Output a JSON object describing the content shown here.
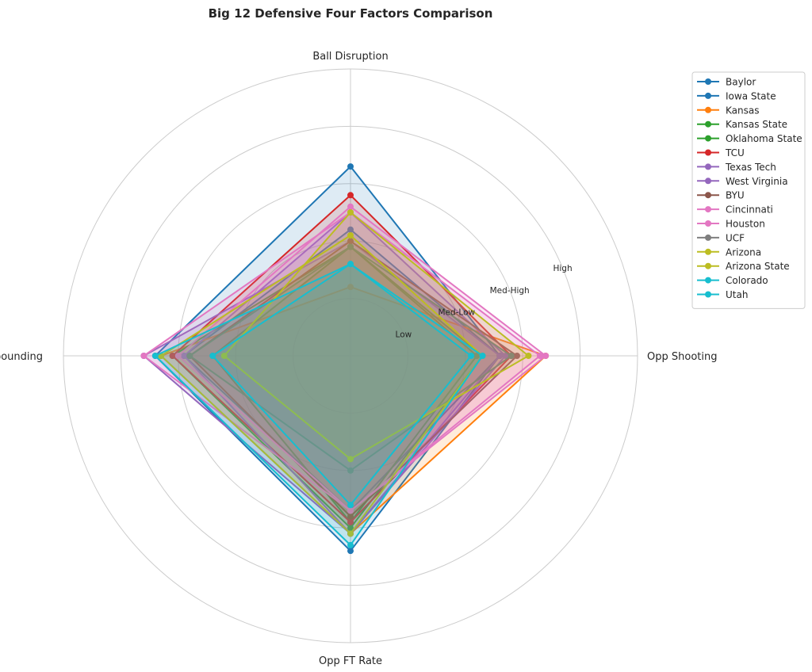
{
  "chart_data": {
    "type": "radar",
    "title": "Big 12 Defensive Four Factors Comparison",
    "axes": [
      "Ball Disruption",
      "Opp Shooting",
      "Opp FT Rate",
      "Def Rebounding"
    ],
    "rlim": [
      0,
      5
    ],
    "ring_labels": [
      {
        "r": 1,
        "text": "Low"
      },
      {
        "r": 2,
        "text": "Med-Low"
      },
      {
        "r": 3,
        "text": "Med-High"
      },
      {
        "r": 4,
        "text": "High"
      }
    ],
    "grid": true,
    "legend_position": "top-right outside",
    "fill_alpha": 0.15,
    "series": [
      {
        "name": "Baylor",
        "color": "#1f77b4",
        "values": [
          2.2,
          2.6,
          2.7,
          2.9
        ]
      },
      {
        "name": "Iowa State",
        "color": "#1f77b4",
        "values": [
          3.3,
          2.6,
          3.4,
          3.4
        ]
      },
      {
        "name": "Kansas",
        "color": "#ff7f0e",
        "values": [
          1.2,
          3.4,
          3.1,
          3.3
        ]
      },
      {
        "name": "Kansas State",
        "color": "#2ca02c",
        "values": [
          1.9,
          2.3,
          3.0,
          3.1
        ]
      },
      {
        "name": "Oklahoma State",
        "color": "#2ca02c",
        "values": [
          1.9,
          2.2,
          2.9,
          2.4
        ]
      },
      {
        "name": "TCU",
        "color": "#d62728",
        "values": [
          2.8,
          2.8,
          2.9,
          3.1
        ]
      },
      {
        "name": "Texas Tech",
        "color": "#9467bd",
        "values": [
          2.5,
          2.7,
          3.1,
          2.9
        ]
      },
      {
        "name": "West Virginia",
        "color": "#9467bd",
        "values": [
          2.0,
          2.6,
          3.1,
          3.6
        ]
      },
      {
        "name": "BYU",
        "color": "#8c564b",
        "values": [
          2.0,
          2.9,
          2.8,
          2.8
        ]
      },
      {
        "name": "Cincinnati",
        "color": "#e377c2",
        "values": [
          2.6,
          3.4,
          2.7,
          3.0
        ]
      },
      {
        "name": "Houston",
        "color": "#e377c2",
        "values": [
          2.5,
          3.3,
          2.7,
          3.6
        ]
      },
      {
        "name": "UCF",
        "color": "#7f7f7f",
        "values": [
          1.9,
          2.8,
          2.0,
          2.8
        ]
      },
      {
        "name": "Arizona",
        "color": "#bcbd22",
        "values": [
          2.1,
          2.3,
          3.1,
          3.3
        ]
      },
      {
        "name": "Arizona State",
        "color": "#bcbd22",
        "values": [
          2.5,
          3.1,
          1.8,
          2.2
        ]
      },
      {
        "name": "Colorado",
        "color": "#17becf",
        "values": [
          1.6,
          2.3,
          3.3,
          3.4
        ]
      },
      {
        "name": "Utah",
        "color": "#17becf",
        "values": [
          1.6,
          2.1,
          2.6,
          2.4
        ]
      }
    ]
  }
}
